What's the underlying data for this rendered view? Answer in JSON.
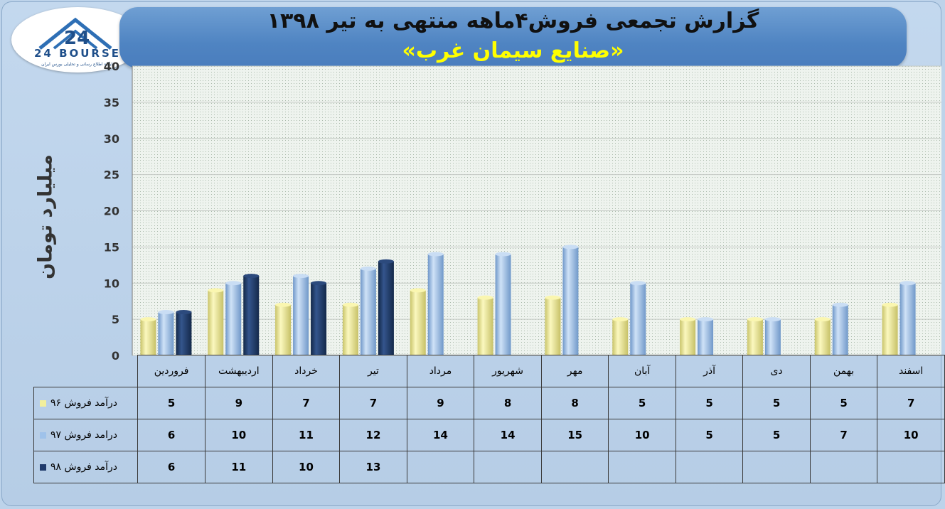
{
  "header": {
    "title": "گزارش تجمعی فروش۴ماهه منتهی به تیر ۱۳۹۸",
    "subtitle": "«صنایع سیمان غرب»"
  },
  "logo": {
    "brand": "24 BOURSE",
    "tagline": "پایگاه اطلاع رسانی و تحلیلی بورس ایران"
  },
  "colors": {
    "series96": "#f2ef9c",
    "series97": "#9fc2ea",
    "series98": "#1f3a6b",
    "plot_bg": "#eef3ee",
    "header": "#5a8fcb"
  },
  "chart_data": {
    "type": "bar",
    "ylabel": "میلیارد تومان",
    "ylim": [
      0,
      40
    ],
    "yticks": [
      0,
      5,
      10,
      15,
      20,
      25,
      30,
      35,
      40
    ],
    "grid": true,
    "categories": [
      "فروردین",
      "اردیبهشت",
      "خرداد",
      "تیر",
      "مرداد",
      "شهریور",
      "مهر",
      "آبان",
      "آذر",
      "دی",
      "بهمن",
      "اسفند"
    ],
    "series": [
      {
        "name": "درآمد فروش ۹۶",
        "values": [
          5,
          9,
          7,
          7,
          9,
          8,
          8,
          5,
          5,
          5,
          5,
          7
        ]
      },
      {
        "name": "درامد فروش ۹۷",
        "values": [
          6,
          10,
          11,
          12,
          14,
          14,
          15,
          10,
          5,
          5,
          7,
          10
        ]
      },
      {
        "name": "درآمد فروش ۹۸",
        "values": [
          6,
          11,
          10,
          13,
          null,
          null,
          null,
          null,
          null,
          null,
          null,
          null
        ]
      }
    ]
  }
}
